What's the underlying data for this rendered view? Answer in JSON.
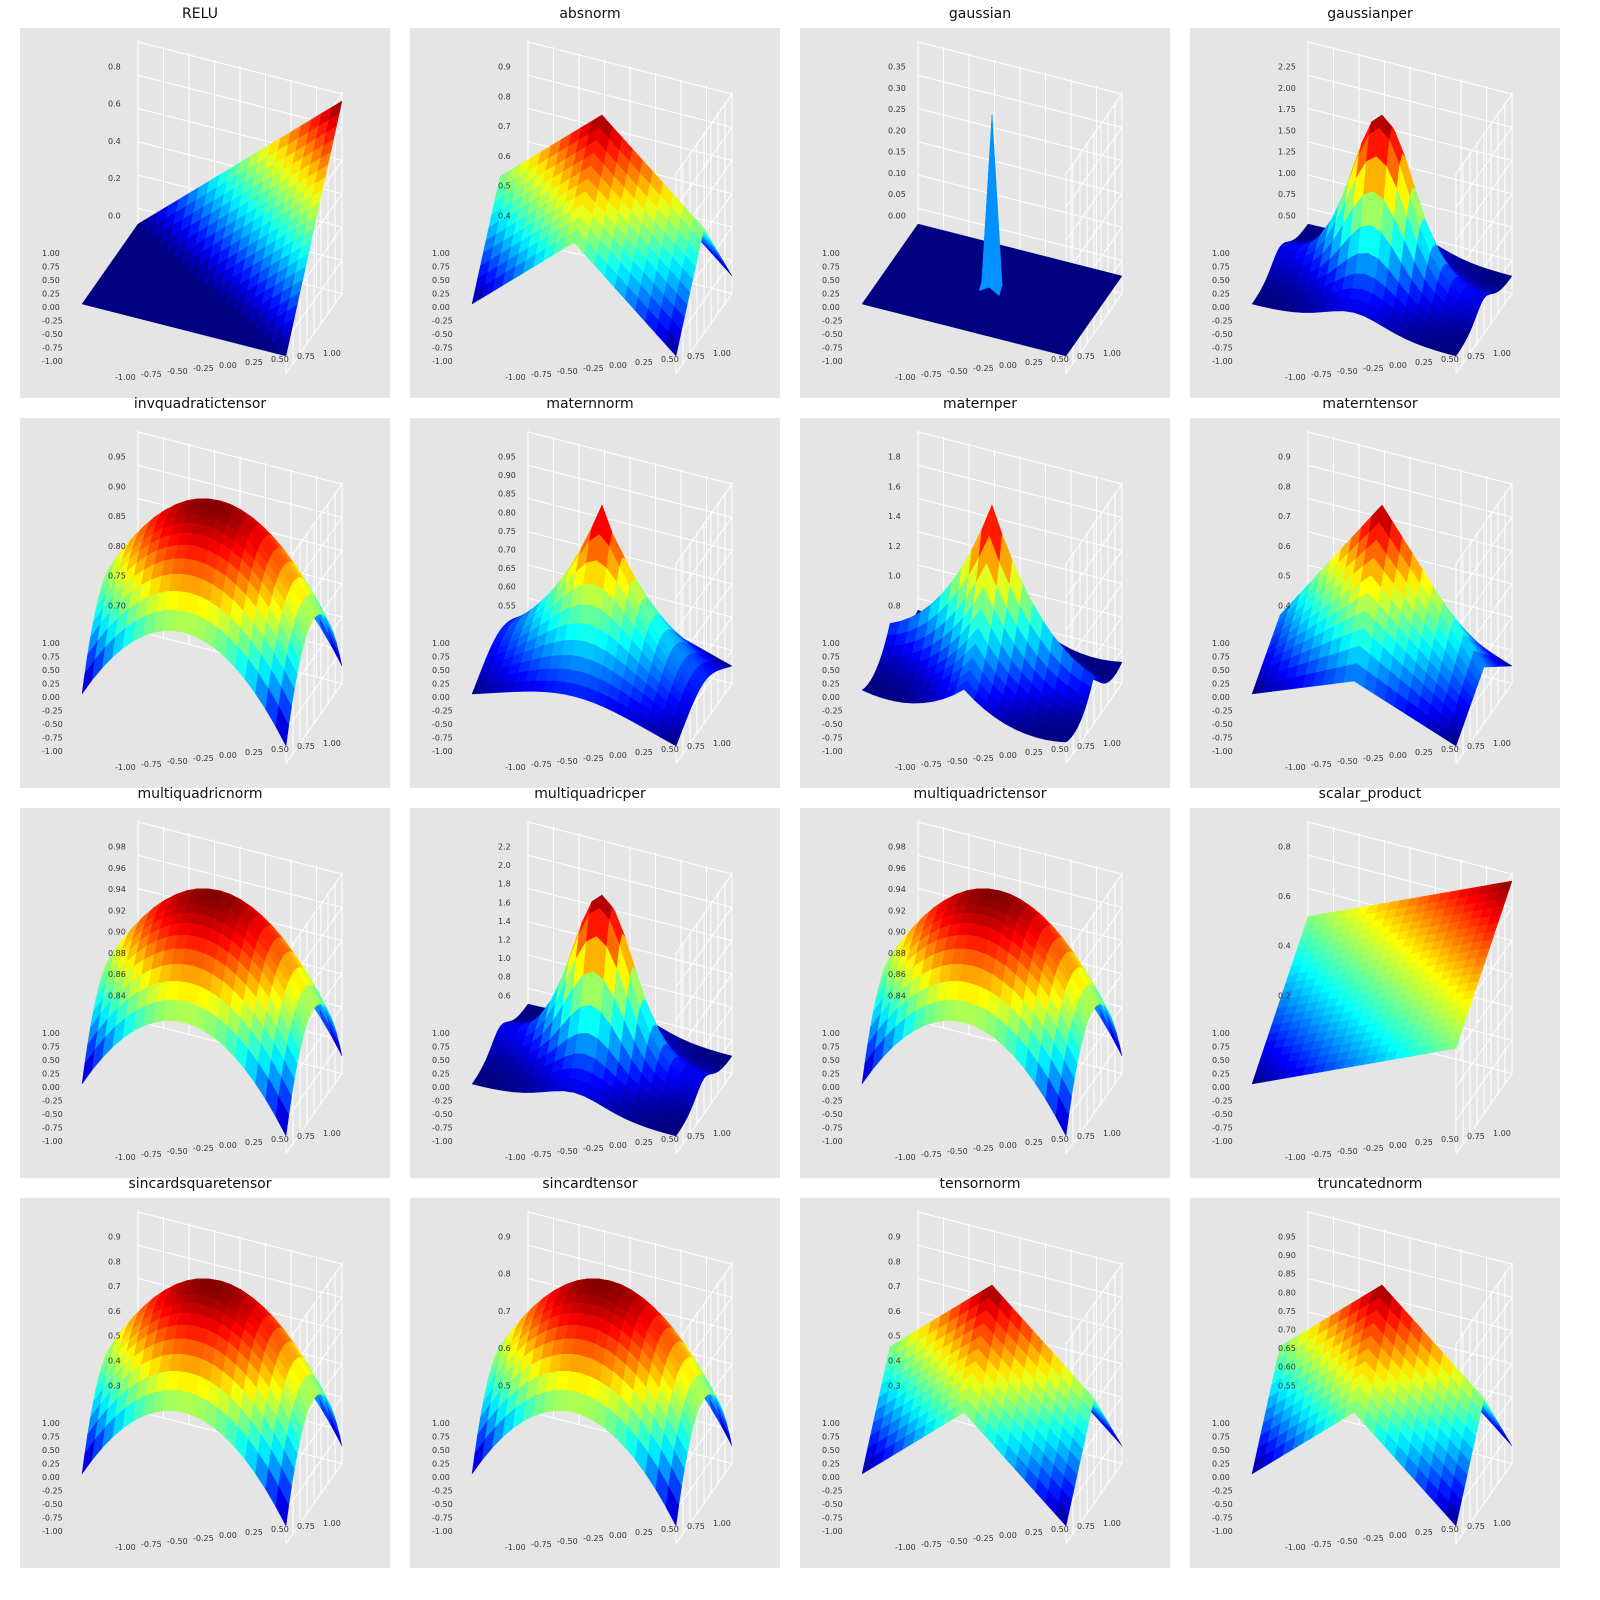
{
  "chart_data": [
    {
      "type": "surface",
      "title": "RELU",
      "kind": "relu",
      "zticks": [
        "0.0",
        "0.2",
        "0.4",
        "0.6",
        "0.8"
      ],
      "xticks": [
        "-1.00",
        "-0.75",
        "-0.50",
        "-0.25",
        "0.00",
        "0.25",
        "0.50",
        "0.75",
        "1.00"
      ],
      "yticks": [
        "1.00",
        "0.75",
        "0.50",
        "0.25",
        "0.00",
        "-0.25",
        "-0.50",
        "-0.75",
        "-1.00"
      ]
    },
    {
      "type": "surface",
      "title": "absnorm",
      "kind": "absnorm",
      "zticks": [
        "0.4",
        "0.5",
        "0.6",
        "0.7",
        "0.8",
        "0.9"
      ],
      "xticks": [
        "-1.00",
        "-0.75",
        "-0.50",
        "-0.25",
        "0.00",
        "0.25",
        "0.50",
        "0.75",
        "1.00"
      ],
      "yticks": [
        "1.00",
        "0.75",
        "0.50",
        "0.25",
        "0.00",
        "-0.25",
        "-0.50",
        "-0.75",
        "-1.00"
      ]
    },
    {
      "type": "surface",
      "title": "gaussian",
      "kind": "gaussian",
      "zticks": [
        "0.00",
        "0.05",
        "0.10",
        "0.15",
        "0.20",
        "0.25",
        "0.30",
        "0.35"
      ],
      "xticks": [
        "-1.00",
        "-0.75",
        "-0.50",
        "-0.25",
        "0.00",
        "0.25",
        "0.50",
        "0.75",
        "1.00"
      ],
      "yticks": [
        "1.00",
        "0.75",
        "0.50",
        "0.25",
        "0.00",
        "-0.25",
        "-0.50",
        "-0.75",
        "-1.00"
      ]
    },
    {
      "type": "surface",
      "title": "gaussianper",
      "kind": "gaussianper",
      "zticks": [
        "0.50",
        "0.75",
        "1.00",
        "1.25",
        "1.50",
        "1.75",
        "2.00",
        "2.25"
      ],
      "xticks": [
        "-1.00",
        "-0.75",
        "-0.50",
        "-0.25",
        "0.00",
        "0.25",
        "0.50",
        "0.75",
        "1.00"
      ],
      "yticks": [
        "1.00",
        "0.75",
        "0.50",
        "0.25",
        "0.00",
        "-0.25",
        "-0.50",
        "-0.75",
        "-1.00"
      ]
    },
    {
      "type": "surface",
      "title": "invquadratictensor",
      "kind": "dome",
      "zticks": [
        "0.70",
        "0.75",
        "0.80",
        "0.85",
        "0.90",
        "0.95"
      ],
      "xticks": [
        "-1.00",
        "-0.75",
        "-0.50",
        "-0.25",
        "0.00",
        "0.25",
        "0.50",
        "0.75",
        "1.00"
      ],
      "yticks": [
        "1.00",
        "0.75",
        "0.50",
        "0.25",
        "0.00",
        "-0.25",
        "-0.50",
        "-0.75",
        "-1.00"
      ]
    },
    {
      "type": "surface",
      "title": "maternnorm",
      "kind": "peak",
      "zticks": [
        "0.55",
        "0.60",
        "0.65",
        "0.70",
        "0.75",
        "0.80",
        "0.85",
        "0.90",
        "0.95"
      ],
      "xticks": [
        "-1.00",
        "-0.75",
        "-0.50",
        "-0.25",
        "0.00",
        "0.25",
        "0.50",
        "0.75",
        "1.00"
      ],
      "yticks": [
        "1.00",
        "0.75",
        "0.50",
        "0.25",
        "0.00",
        "-0.25",
        "-0.50",
        "-0.75",
        "-1.00"
      ]
    },
    {
      "type": "surface",
      "title": "maternper",
      "kind": "maternper",
      "zticks": [
        "0.8",
        "1.0",
        "1.2",
        "1.4",
        "1.6",
        "1.8"
      ],
      "xticks": [
        "-1.00",
        "-0.75",
        "-0.50",
        "-0.25",
        "0.00",
        "0.25",
        "0.50",
        "0.75",
        "1.00"
      ],
      "yticks": [
        "1.00",
        "0.75",
        "0.50",
        "0.25",
        "0.00",
        "-0.25",
        "-0.50",
        "-0.75",
        "-1.00"
      ]
    },
    {
      "type": "surface",
      "title": "materntensor",
      "kind": "tensorpeak",
      "zticks": [
        "0.4",
        "0.5",
        "0.6",
        "0.7",
        "0.8",
        "0.9"
      ],
      "xticks": [
        "-1.00",
        "-0.75",
        "-0.50",
        "-0.25",
        "0.00",
        "0.25",
        "0.50",
        "0.75",
        "1.00"
      ],
      "yticks": [
        "1.00",
        "0.75",
        "0.50",
        "0.25",
        "0.00",
        "-0.25",
        "-0.50",
        "-0.75",
        "-1.00"
      ]
    },
    {
      "type": "surface",
      "title": "multiquadricnorm",
      "kind": "dome",
      "zticks": [
        "0.84",
        "0.86",
        "0.88",
        "0.90",
        "0.92",
        "0.94",
        "0.96",
        "0.98"
      ],
      "xticks": [
        "-1.00",
        "-0.75",
        "-0.50",
        "-0.25",
        "0.00",
        "0.25",
        "0.50",
        "0.75",
        "1.00"
      ],
      "yticks": [
        "1.00",
        "0.75",
        "0.50",
        "0.25",
        "0.00",
        "-0.25",
        "-0.50",
        "-0.75",
        "-1.00"
      ]
    },
    {
      "type": "surface",
      "title": "multiquadricper",
      "kind": "gaussianper",
      "zticks": [
        "0.6",
        "0.8",
        "1.0",
        "1.2",
        "1.4",
        "1.6",
        "1.8",
        "2.0",
        "2.2"
      ],
      "xticks": [
        "-1.00",
        "-0.75",
        "-0.50",
        "-0.25",
        "0.00",
        "0.25",
        "0.50",
        "0.75",
        "1.00"
      ],
      "yticks": [
        "1.00",
        "0.75",
        "0.50",
        "0.25",
        "0.00",
        "-0.25",
        "-0.50",
        "-0.75",
        "-1.00"
      ]
    },
    {
      "type": "surface",
      "title": "multiquadrictensor",
      "kind": "dome",
      "zticks": [
        "0.84",
        "0.86",
        "0.88",
        "0.90",
        "0.92",
        "0.94",
        "0.96",
        "0.98"
      ],
      "xticks": [
        "-1.00",
        "-0.75",
        "-0.50",
        "-0.25",
        "0.00",
        "0.25",
        "0.50",
        "0.75",
        "1.00"
      ],
      "yticks": [
        "1.00",
        "0.75",
        "0.50",
        "0.25",
        "0.00",
        "-0.25",
        "-0.50",
        "-0.75",
        "-1.00"
      ]
    },
    {
      "type": "surface",
      "title": "scalar_product",
      "kind": "plane",
      "zticks": [
        "0.2",
        "0.4",
        "0.6",
        "0.8"
      ],
      "xticks": [
        "-1.00",
        "-0.75",
        "-0.50",
        "-0.25",
        "0.00",
        "0.25",
        "0.50",
        "0.75",
        "1.00"
      ],
      "yticks": [
        "1.00",
        "0.75",
        "0.50",
        "0.25",
        "0.00",
        "-0.25",
        "-0.50",
        "-0.75",
        "-1.00"
      ]
    },
    {
      "type": "surface",
      "title": "sincardsquaretensor",
      "kind": "dome",
      "zticks": [
        "0.3",
        "0.4",
        "0.5",
        "0.6",
        "0.7",
        "0.8",
        "0.9"
      ],
      "xticks": [
        "-1.00",
        "-0.75",
        "-0.50",
        "-0.25",
        "0.00",
        "0.25",
        "0.50",
        "0.75",
        "1.00"
      ],
      "yticks": [
        "1.00",
        "0.75",
        "0.50",
        "0.25",
        "0.00",
        "-0.25",
        "-0.50",
        "-0.75",
        "-1.00"
      ]
    },
    {
      "type": "surface",
      "title": "sincardtensor",
      "kind": "dome",
      "zticks": [
        "0.5",
        "0.6",
        "0.7",
        "0.8",
        "0.9"
      ],
      "xticks": [
        "-1.00",
        "-0.75",
        "-0.50",
        "-0.25",
        "0.00",
        "0.25",
        "0.50",
        "0.75",
        "1.00"
      ],
      "yticks": [
        "1.00",
        "0.75",
        "0.50",
        "0.25",
        "0.00",
        "-0.25",
        "-0.50",
        "-0.75",
        "-1.00"
      ]
    },
    {
      "type": "surface",
      "title": "tensornorm",
      "kind": "absnorm",
      "zticks": [
        "0.3",
        "0.4",
        "0.5",
        "0.6",
        "0.7",
        "0.8",
        "0.9"
      ],
      "xticks": [
        "-1.00",
        "-0.75",
        "-0.50",
        "-0.25",
        "0.00",
        "0.25",
        "0.50",
        "0.75",
        "1.00"
      ],
      "yticks": [
        "1.00",
        "0.75",
        "0.50",
        "0.25",
        "0.00",
        "-0.25",
        "-0.50",
        "-0.75",
        "-1.00"
      ]
    },
    {
      "type": "surface",
      "title": "truncatednorm",
      "kind": "absnorm",
      "zticks": [
        "0.55",
        "0.60",
        "0.65",
        "0.70",
        "0.75",
        "0.80",
        "0.85",
        "0.90",
        "0.95"
      ],
      "xticks": [
        "-1.00",
        "-0.75",
        "-0.50",
        "-0.25",
        "0.00",
        "0.25",
        "0.50",
        "0.75",
        "1.00"
      ],
      "yticks": [
        "1.00",
        "0.75",
        "0.50",
        "0.25",
        "0.00",
        "-0.25",
        "-0.50",
        "-0.75",
        "-1.00"
      ]
    }
  ]
}
